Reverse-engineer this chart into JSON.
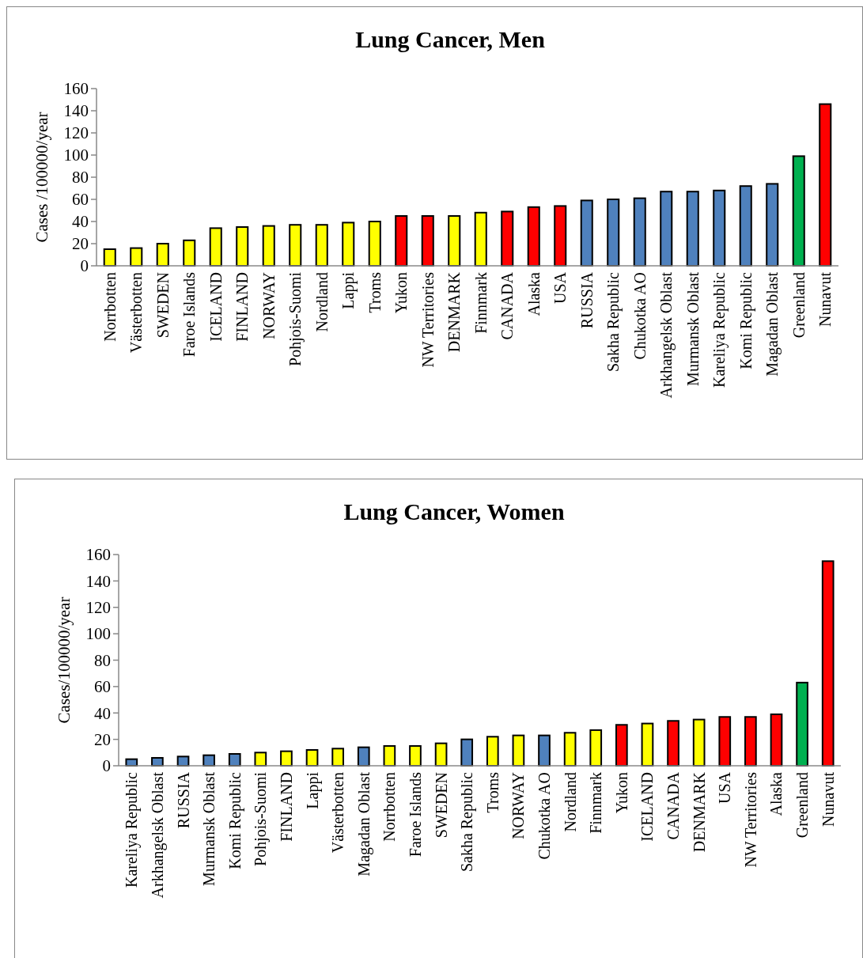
{
  "chart_data": [
    {
      "type": "bar",
      "title": "Lung Cancer, Men",
      "ylabel": "Cases /100000/year",
      "categories": [
        "Norrbotten",
        "Västerbotten",
        "SWEDEN",
        "Faroe Islands",
        "ICELAND",
        "FINLAND",
        "NORWAY",
        "Pohjois-Suomi",
        "Nordland",
        "Lappi",
        "Troms",
        "Yukon",
        "NW Territories",
        "DENMARK",
        "Finnmark",
        "CANADA",
        "Alaska",
        "USA",
        "RUSSIA",
        "Sakha Republic",
        "Chukotka AO",
        "Arkhangelsk Oblast",
        "Murmansk Oblast",
        "Kareliya Republic",
        "Komi Republic",
        "Magadan Oblast",
        "Greenland",
        "Nunavut"
      ],
      "values": [
        15,
        16,
        20,
        23,
        34,
        35,
        36,
        37,
        37,
        39,
        40,
        45,
        45,
        45,
        48,
        49,
        53,
        54,
        59,
        60,
        61,
        67,
        67,
        68,
        72,
        74,
        99,
        146
      ],
      "colors": [
        "#ffff00",
        "#ffff00",
        "#ffff00",
        "#ffff00",
        "#ffff00",
        "#ffff00",
        "#ffff00",
        "#ffff00",
        "#ffff00",
        "#ffff00",
        "#ffff00",
        "#ff0000",
        "#ff0000",
        "#ffff00",
        "#ffff00",
        "#ff0000",
        "#ff0000",
        "#ff0000",
        "#4f81bd",
        "#4f81bd",
        "#4f81bd",
        "#4f81bd",
        "#4f81bd",
        "#4f81bd",
        "#4f81bd",
        "#4f81bd",
        "#00b050",
        "#ff0000"
      ],
      "ylim": [
        0,
        160
      ],
      "yticks": [
        0,
        20,
        40,
        60,
        80,
        100,
        120,
        140,
        160
      ],
      "grid": false
    },
    {
      "type": "bar",
      "title": "Lung Cancer, Women",
      "ylabel": "Cases/100000/year",
      "categories": [
        "Kareliya Republic",
        "Arkhangelsk Oblast",
        "RUSSIA",
        "Murmansk Oblast",
        "Komi Republic",
        "Pohjois-Suomi",
        "FINLAND",
        "Lappi",
        "Västerbotten",
        "Magadan Oblast",
        "Norrbotten",
        "Faroe Islands",
        "SWEDEN",
        "Sakha Republic",
        "Troms",
        "NORWAY",
        "Chukotka AO",
        "Nordland",
        "Finnmark",
        "Yukon",
        "ICELAND",
        "CANADA",
        "DENMARK",
        "USA",
        "NW Territories",
        "Alaska",
        "Greenland",
        "Nunavut"
      ],
      "values": [
        5,
        6,
        7,
        8,
        9,
        10,
        11,
        12,
        13,
        14,
        15,
        15,
        17,
        20,
        22,
        23,
        23,
        25,
        27,
        31,
        32,
        34,
        35,
        37,
        37,
        39,
        63,
        155
      ],
      "colors": [
        "#4f81bd",
        "#4f81bd",
        "#4f81bd",
        "#4f81bd",
        "#4f81bd",
        "#ffff00",
        "#ffff00",
        "#ffff00",
        "#ffff00",
        "#4f81bd",
        "#ffff00",
        "#ffff00",
        "#ffff00",
        "#4f81bd",
        "#ffff00",
        "#ffff00",
        "#4f81bd",
        "#ffff00",
        "#ffff00",
        "#ff0000",
        "#ffff00",
        "#ff0000",
        "#ffff00",
        "#ff0000",
        "#ff0000",
        "#ff0000",
        "#00b050",
        "#ff0000"
      ],
      "ylim": [
        0,
        160
      ],
      "yticks": [
        0,
        20,
        40,
        60,
        80,
        100,
        120,
        140,
        160
      ],
      "grid": false
    }
  ]
}
